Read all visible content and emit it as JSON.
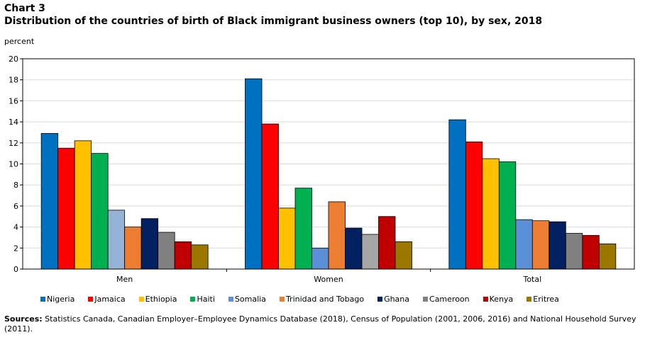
{
  "header": {
    "chart_number": "Chart 3",
    "title": "Distribution of the countries of birth of Black immigrant business owners (top 10), by sex, 2018"
  },
  "footer": {
    "sources_label": "Sources:",
    "sources_text": " Statistics Canada, Canadian Employer–Employee Dynamics Database (2018), Census of Population (2001, 2006, 2016) and National Household Survey (2011)."
  },
  "chart_data": {
    "type": "bar",
    "title": "Distribution of the countries of birth of Black immigrant business owners (top 10), by sex, 2018",
    "ylabel": "percent",
    "xlabel": "",
    "ylim": [
      0,
      20
    ],
    "yticks": [
      0,
      2,
      4,
      6,
      8,
      10,
      12,
      14,
      16,
      18,
      20
    ],
    "grid": true,
    "legend_position": "bottom",
    "categories": [
      "Men",
      "Women",
      "Total"
    ],
    "series": [
      {
        "name": "Nigeria",
        "values": [
          12.9,
          18.1,
          14.2
        ],
        "colors": [
          "#0070C0",
          "#0070C0",
          "#0070C0"
        ]
      },
      {
        "name": "Jamaica",
        "values": [
          11.5,
          13.8,
          12.1
        ],
        "colors": [
          "#FF0000",
          "#FF0000",
          "#FF0000"
        ]
      },
      {
        "name": "Ethiopia",
        "values": [
          12.2,
          5.8,
          10.5
        ],
        "colors": [
          "#FFC000",
          "#FFC000",
          "#FFC000"
        ]
      },
      {
        "name": "Haiti",
        "values": [
          11.0,
          7.7,
          10.2
        ],
        "colors": [
          "#00B050",
          "#00B050",
          "#00B050"
        ]
      },
      {
        "name": "Somalia",
        "values": [
          5.6,
          2.0,
          4.7
        ],
        "colors": [
          "#95B3D7",
          "#5B8FD8",
          "#5B8FD8"
        ]
      },
      {
        "name": "Trinidad and Tobago",
        "values": [
          4.0,
          6.4,
          4.6
        ],
        "colors": [
          "#ED7D31",
          "#ED7D31",
          "#ED7D31"
        ]
      },
      {
        "name": "Ghana",
        "values": [
          4.8,
          3.9,
          4.5
        ],
        "colors": [
          "#002060",
          "#002060",
          "#002060"
        ]
      },
      {
        "name": "Cameroon",
        "values": [
          3.5,
          3.3,
          3.4
        ],
        "colors": [
          "#808080",
          "#A6A6A6",
          "#808080"
        ]
      },
      {
        "name": "Kenya",
        "values": [
          2.6,
          5.0,
          3.2
        ],
        "colors": [
          "#C00000",
          "#C00000",
          "#C00000"
        ]
      },
      {
        "name": "Eritrea",
        "values": [
          2.3,
          2.6,
          2.4
        ],
        "colors": [
          "#9C7700",
          "#9C7700",
          "#9C7700"
        ]
      }
    ],
    "legend_colors": [
      "#0070C0",
      "#FF0000",
      "#FFC000",
      "#00B050",
      "#5B8FD8",
      "#ED7D31",
      "#002060",
      "#808080",
      "#C00000",
      "#9C7700"
    ]
  }
}
